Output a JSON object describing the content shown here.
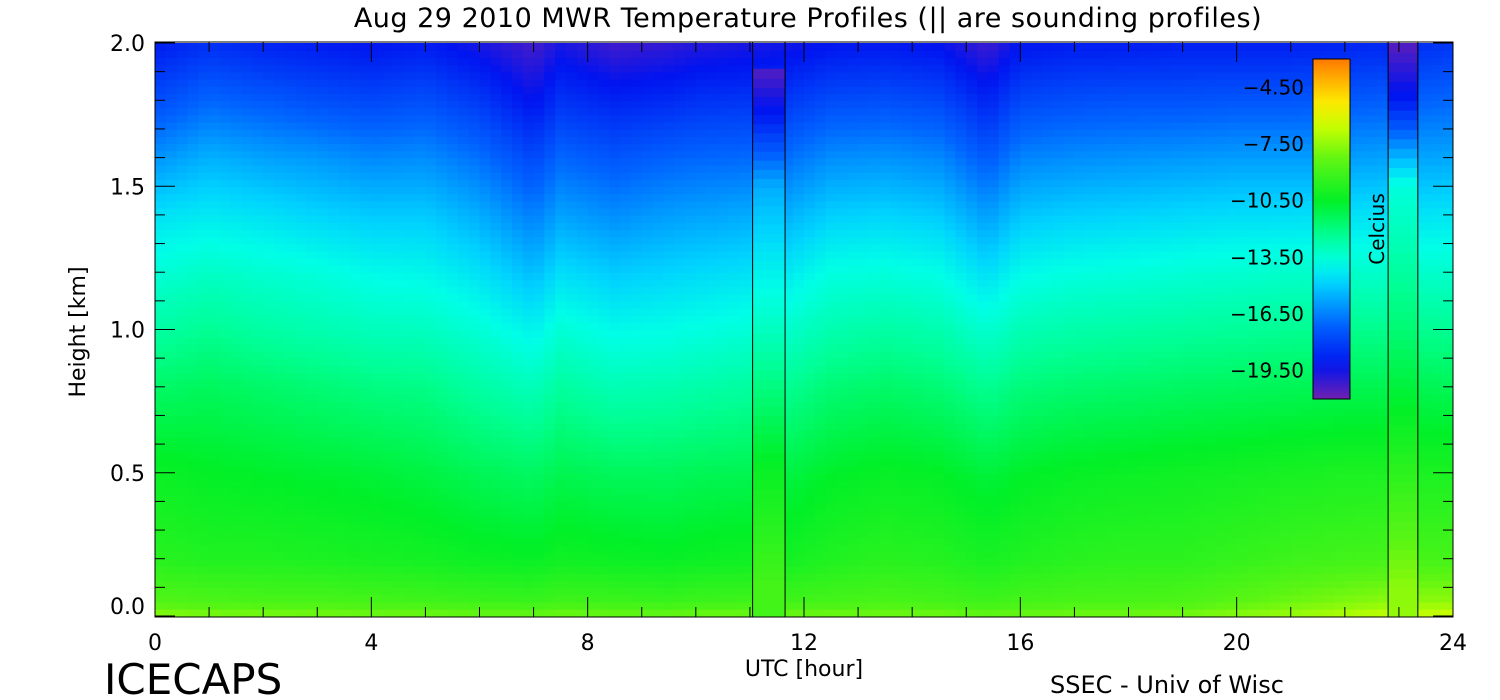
{
  "chart_data": {
    "type": "heatmap",
    "title": "Aug 29 2010 MWR Temperature Profiles (|| are sounding profiles)",
    "xlabel": "UTC [hour]",
    "ylabel": "Height [km]",
    "xlim": [
      0,
      24
    ],
    "ylim": [
      0,
      2.0
    ],
    "x_ticks": [
      "0",
      "4",
      "8",
      "12",
      "16",
      "20",
      "24"
    ],
    "y_ticks": [
      "0.0",
      "0.5",
      "1.0",
      "1.5",
      "2.0"
    ],
    "colorbar": {
      "label": "Celcius",
      "range": [
        -21.0,
        -3.0
      ],
      "ticks": [
        "-4.50",
        "-7.50",
        "-10.50",
        "-13.50",
        "-16.50",
        "-19.50"
      ],
      "placement": "top-right"
    },
    "heights_km": [
      0.0,
      0.05,
      0.2,
      0.5,
      0.8,
      1.0,
      1.2,
      1.4,
      1.6,
      1.8,
      2.0
    ],
    "mwr_profiles": [
      {
        "hour": 0.0,
        "temps": [
          -7.6,
          -8.6,
          -9.6,
          -10.3,
          -11.6,
          -12.6,
          -13.5,
          -14.5,
          -16.1,
          -17.7,
          -19.0
        ]
      },
      {
        "hour": 1.0,
        "temps": [
          -7.8,
          -8.7,
          -9.8,
          -10.5,
          -11.4,
          -12.3,
          -13.2,
          -14.3,
          -15.5,
          -17.0,
          -18.5
        ]
      },
      {
        "hour": 2.0,
        "temps": [
          -7.8,
          -8.8,
          -9.8,
          -10.6,
          -11.6,
          -12.6,
          -13.4,
          -14.5,
          -15.8,
          -17.3,
          -18.8
        ]
      },
      {
        "hour": 3.0,
        "temps": [
          -7.9,
          -8.8,
          -9.9,
          -10.7,
          -11.8,
          -12.8,
          -13.6,
          -14.8,
          -16.0,
          -17.6,
          -19.0
        ]
      },
      {
        "hour": 4.0,
        "temps": [
          -8.0,
          -8.9,
          -10.0,
          -10.8,
          -12.0,
          -13.0,
          -13.9,
          -15.0,
          -16.3,
          -17.8,
          -19.2
        ]
      },
      {
        "hour": 5.0,
        "temps": [
          -8.0,
          -9.0,
          -10.1,
          -11.0,
          -12.1,
          -13.1,
          -14.0,
          -15.0,
          -16.2,
          -17.6,
          -19.0
        ]
      },
      {
        "hour": 6.0,
        "temps": [
          -8.1,
          -9.1,
          -10.3,
          -11.3,
          -12.6,
          -13.5,
          -14.5,
          -15.6,
          -16.8,
          -18.2,
          -19.6
        ]
      },
      {
        "hour": 7.0,
        "temps": [
          -8.1,
          -9.2,
          -10.4,
          -11.5,
          -13.0,
          -14.1,
          -15.3,
          -16.5,
          -17.8,
          -19.3,
          -20.3
        ]
      },
      {
        "hour": 7.5,
        "temps": [
          -8.0,
          -9.0,
          -10.2,
          -11.2,
          -12.5,
          -13.5,
          -14.6,
          -15.8,
          -17.0,
          -18.4,
          -19.6
        ]
      },
      {
        "hour": 8.5,
        "temps": [
          -8.1,
          -9.1,
          -10.3,
          -11.4,
          -12.9,
          -13.9,
          -15.0,
          -16.2,
          -17.4,
          -18.8,
          -20.2
        ]
      },
      {
        "hour": 9.5,
        "temps": [
          -8.1,
          -9.2,
          -10.4,
          -11.4,
          -12.8,
          -13.8,
          -14.8,
          -15.9,
          -17.1,
          -18.6,
          -20.0
        ]
      },
      {
        "hour": 10.0,
        "temps": [
          -8.0,
          -9.1,
          -10.3,
          -11.3,
          -12.7,
          -13.7,
          -14.7,
          -15.8,
          -17.0,
          -18.4,
          -19.8
        ]
      },
      {
        "hour": 11.1,
        "temps": [
          -8.0,
          -9.0,
          -10.2,
          -11.2,
          -12.5,
          -13.5,
          -14.5,
          -15.6,
          -16.9,
          -18.3,
          -19.6
        ]
      },
      {
        "hour": 11.7,
        "temps": [
          -8.0,
          -9.0,
          -10.1,
          -11.0,
          -12.3,
          -13.3,
          -14.3,
          -15.5,
          -16.8,
          -18.2,
          -19.5
        ]
      },
      {
        "hour": 12.5,
        "temps": [
          -8.0,
          -8.9,
          -9.8,
          -10.6,
          -11.8,
          -12.8,
          -13.7,
          -14.9,
          -16.2,
          -17.7,
          -19.2
        ]
      },
      {
        "hour": 13.5,
        "temps": [
          -8.0,
          -8.8,
          -9.6,
          -10.4,
          -11.6,
          -12.6,
          -13.6,
          -14.8,
          -16.1,
          -17.6,
          -19.1
        ]
      },
      {
        "hour": 14.5,
        "temps": [
          -8.0,
          -8.9,
          -9.7,
          -10.5,
          -11.8,
          -12.8,
          -13.8,
          -15.0,
          -16.3,
          -17.8,
          -19.3
        ]
      },
      {
        "hour": 15.4,
        "temps": [
          -8.2,
          -9.1,
          -10.0,
          -10.9,
          -12.3,
          -13.4,
          -14.6,
          -15.9,
          -17.3,
          -18.8,
          -20.2
        ]
      },
      {
        "hour": 16.0,
        "temps": [
          -8.1,
          -8.9,
          -9.8,
          -10.6,
          -11.9,
          -12.9,
          -13.9,
          -15.1,
          -16.4,
          -17.8,
          -19.2
        ]
      },
      {
        "hour": 17.0,
        "temps": [
          -8.0,
          -8.8,
          -9.6,
          -10.4,
          -11.7,
          -12.7,
          -13.7,
          -14.9,
          -16.2,
          -17.6,
          -19.0
        ]
      },
      {
        "hour": 18.0,
        "temps": [
          -8.0,
          -8.8,
          -9.5,
          -10.3,
          -11.6,
          -12.6,
          -13.6,
          -14.8,
          -16.1,
          -17.5,
          -19.0
        ]
      },
      {
        "hour": 19.0,
        "temps": [
          -7.9,
          -8.7,
          -9.5,
          -10.2,
          -11.5,
          -12.5,
          -13.5,
          -14.7,
          -16.0,
          -17.5,
          -18.9
        ]
      },
      {
        "hour": 20.0,
        "temps": [
          -7.6,
          -8.4,
          -9.3,
          -10.1,
          -11.4,
          -12.4,
          -13.4,
          -14.6,
          -15.9,
          -17.4,
          -18.9
        ]
      },
      {
        "hour": 21.0,
        "temps": [
          -7.3,
          -8.1,
          -9.1,
          -10.0,
          -11.3,
          -12.3,
          -13.3,
          -14.6,
          -15.9,
          -17.4,
          -18.9
        ]
      },
      {
        "hour": 22.0,
        "temps": [
          -6.9,
          -7.8,
          -9.0,
          -9.9,
          -11.2,
          -12.2,
          -13.3,
          -14.5,
          -15.9,
          -17.3,
          -18.8
        ]
      },
      {
        "hour": 22.8,
        "temps": [
          -6.6,
          -7.6,
          -8.9,
          -9.9,
          -11.2,
          -12.2,
          -13.3,
          -14.5,
          -15.8,
          -17.2,
          -18.7
        ]
      },
      {
        "hour": 24.0,
        "temps": [
          -6.4,
          -7.5,
          -8.9,
          -9.9,
          -11.3,
          -12.3,
          -13.3,
          -14.4,
          -15.7,
          -17.0,
          -18.3
        ]
      }
    ],
    "soundings": [
      {
        "start_hour": 11.05,
        "end_hour": 11.65,
        "top_km": 1.91,
        "heights_km": [
          0.0,
          0.1,
          0.5,
          1.0,
          1.5,
          1.75,
          1.91
        ],
        "temps": [
          -9.0,
          -8.9,
          -10.3,
          -13.1,
          -15.6,
          -19.0,
          -20.5
        ]
      },
      {
        "start_hour": 22.8,
        "end_hour": 23.35,
        "top_km": 2.0,
        "heights_km": [
          0.0,
          0.1,
          0.5,
          1.0,
          1.5,
          1.8,
          2.0
        ],
        "temps": [
          -7.5,
          -7.6,
          -9.5,
          -11.8,
          -13.6,
          -19.0,
          -20.6
        ]
      }
    ],
    "grid": false
  },
  "branding": {
    "project": "ICECAPS",
    "credit": "SSEC - Univ of Wisc"
  }
}
